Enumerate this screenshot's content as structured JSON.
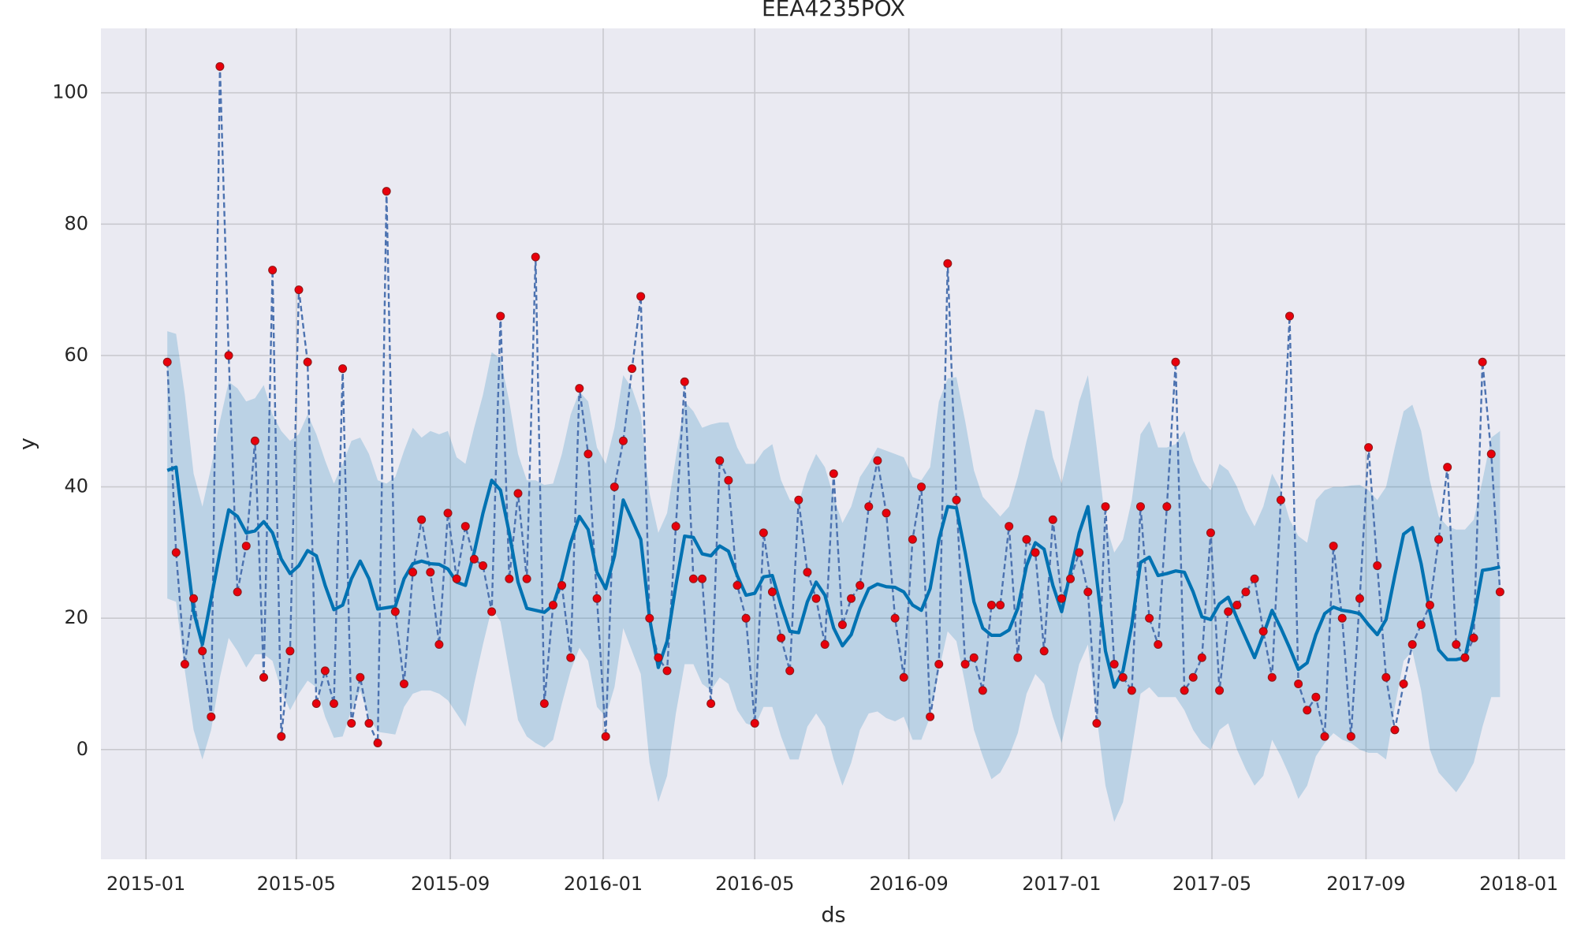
{
  "chart_data": {
    "type": "line",
    "title": "EEA4235POX",
    "x_label": "ds",
    "y_label": "y",
    "background": "#eaeaf2",
    "grid": true,
    "xlim": [
      "2014-11-26",
      "2018-02-07"
    ],
    "ylim": [
      -16.7,
      109.8
    ],
    "yticks": [
      0,
      20,
      40,
      60,
      80,
      100
    ],
    "xticks": [
      {
        "value": "2015-01-01",
        "label": "2015-01"
      },
      {
        "value": "2015-05-01",
        "label": "2015-05"
      },
      {
        "value": "2015-09-01",
        "label": "2015-09"
      },
      {
        "value": "2016-01-01",
        "label": "2016-01"
      },
      {
        "value": "2016-05-01",
        "label": "2016-05"
      },
      {
        "value": "2016-09-01",
        "label": "2016-09"
      },
      {
        "value": "2017-01-01",
        "label": "2017-01"
      },
      {
        "value": "2017-05-01",
        "label": "2017-05"
      },
      {
        "value": "2017-09-01",
        "label": "2017-09"
      },
      {
        "value": "2018-01-01",
        "label": "2018-01"
      }
    ],
    "x": [
      "2015-01-18",
      "2015-01-25",
      "2015-02-01",
      "2015-02-08",
      "2015-02-15",
      "2015-02-22",
      "2015-03-01",
      "2015-03-08",
      "2015-03-15",
      "2015-03-22",
      "2015-03-29",
      "2015-04-05",
      "2015-04-12",
      "2015-04-19",
      "2015-04-26",
      "2015-05-03",
      "2015-05-10",
      "2015-05-17",
      "2015-05-24",
      "2015-05-31",
      "2015-06-07",
      "2015-06-14",
      "2015-06-21",
      "2015-06-28",
      "2015-07-05",
      "2015-07-12",
      "2015-07-19",
      "2015-07-26",
      "2015-08-02",
      "2015-08-09",
      "2015-08-16",
      "2015-08-23",
      "2015-08-30",
      "2015-09-06",
      "2015-09-13",
      "2015-09-20",
      "2015-09-27",
      "2015-10-04",
      "2015-10-11",
      "2015-10-18",
      "2015-10-25",
      "2015-11-01",
      "2015-11-08",
      "2015-11-15",
      "2015-11-22",
      "2015-11-29",
      "2015-12-06",
      "2015-12-13",
      "2015-12-20",
      "2015-12-27",
      "2016-01-03",
      "2016-01-10",
      "2016-01-17",
      "2016-01-24",
      "2016-01-31",
      "2016-02-07",
      "2016-02-14",
      "2016-02-21",
      "2016-02-28",
      "2016-03-06",
      "2016-03-13",
      "2016-03-20",
      "2016-03-27",
      "2016-04-03",
      "2016-04-10",
      "2016-04-17",
      "2016-04-24",
      "2016-05-01",
      "2016-05-08",
      "2016-05-15",
      "2016-05-22",
      "2016-05-29",
      "2016-06-05",
      "2016-06-12",
      "2016-06-19",
      "2016-06-26",
      "2016-07-03",
      "2016-07-10",
      "2016-07-17",
      "2016-07-24",
      "2016-07-31",
      "2016-08-07",
      "2016-08-14",
      "2016-08-21",
      "2016-08-28",
      "2016-09-04",
      "2016-09-11",
      "2016-09-18",
      "2016-09-25",
      "2016-10-02",
      "2016-10-09",
      "2016-10-16",
      "2016-10-23",
      "2016-10-30",
      "2016-11-06",
      "2016-11-13",
      "2016-11-20",
      "2016-11-27",
      "2016-12-04",
      "2016-12-11",
      "2016-12-18",
      "2016-12-25",
      "2017-01-01",
      "2017-01-08",
      "2017-01-15",
      "2017-01-22",
      "2017-01-29",
      "2017-02-05",
      "2017-02-12",
      "2017-02-19",
      "2017-02-26",
      "2017-03-05",
      "2017-03-12",
      "2017-03-19",
      "2017-03-26",
      "2017-04-02",
      "2017-04-09",
      "2017-04-16",
      "2017-04-23",
      "2017-04-30",
      "2017-05-07",
      "2017-05-14",
      "2017-05-21",
      "2017-05-28",
      "2017-06-04",
      "2017-06-11",
      "2017-06-18",
      "2017-06-25",
      "2017-07-02",
      "2017-07-09",
      "2017-07-16",
      "2017-07-23",
      "2017-07-30",
      "2017-08-06",
      "2017-08-13",
      "2017-08-20",
      "2017-08-27",
      "2017-09-03",
      "2017-09-10",
      "2017-09-17",
      "2017-09-24",
      "2017-10-01",
      "2017-10-08",
      "2017-10-15",
      "2017-10-22",
      "2017-10-29",
      "2017-11-05",
      "2017-11-12",
      "2017-11-19",
      "2017-11-26",
      "2017-12-03",
      "2017-12-10",
      "2017-12-17"
    ],
    "series": [
      {
        "color": "#4c72b0",
        "marker_color": "#e8000b",
        "line_style": "dashed",
        "values": [
          59,
          30,
          13,
          23,
          15,
          5,
          104,
          60,
          24,
          31,
          47,
          11,
          73,
          2,
          15,
          70,
          59,
          7,
          12,
          7,
          58,
          4,
          11,
          4,
          1,
          85,
          21,
          10,
          27,
          35,
          27,
          16,
          36,
          26,
          34,
          29,
          28,
          21,
          66,
          26,
          39,
          26,
          75,
          7,
          22,
          25,
          14,
          55,
          45,
          23,
          2,
          40,
          47,
          58,
          69,
          20,
          14,
          12,
          34,
          56,
          26,
          26,
          7,
          44,
          41,
          25,
          20,
          4,
          33,
          24,
          17,
          12,
          38,
          27,
          23,
          16,
          42,
          19,
          23,
          25,
          37,
          44,
          36,
          20,
          11,
          32,
          40,
          5,
          13,
          74,
          38,
          13,
          14,
          9,
          22,
          22,
          34,
          14,
          32,
          30,
          15,
          35,
          23,
          26,
          30,
          24,
          4,
          37,
          13,
          11,
          9,
          37,
          20,
          16,
          37,
          59,
          9,
          11,
          14,
          33,
          9,
          21,
          22,
          24,
          26,
          18,
          11,
          38,
          66,
          10,
          6,
          8,
          2,
          31,
          20,
          2,
          23,
          46,
          28,
          11,
          3,
          10,
          16,
          19,
          22,
          32,
          43,
          16,
          14,
          17,
          59,
          45,
          24
        ]
      },
      {
        "color": "#0072b2",
        "band_color": "#0072b2",
        "values": [
          42.5,
          43,
          32,
          21,
          16,
          23,
          30,
          36.5,
          35.5,
          33,
          33.3,
          34.7,
          33,
          29,
          26.8,
          28,
          30.3,
          29.5,
          25,
          21.3,
          22,
          26,
          28.7,
          26,
          21.4,
          21.6,
          21.8,
          26,
          28.3,
          28.7,
          28.3,
          28.2,
          27.5,
          25.5,
          25,
          30,
          36,
          41,
          39.5,
          33,
          25.5,
          21.5,
          21.2,
          20.9,
          22,
          26,
          31.5,
          35.5,
          33.5,
          27,
          24.5,
          29.5,
          38,
          35,
          32,
          20,
          12.5,
          16.5,
          25,
          32.5,
          32.3,
          29.8,
          29.5,
          31,
          30.2,
          26.5,
          23.5,
          23.8,
          26.3,
          26.5,
          22,
          18,
          17.8,
          22.5,
          25.5,
          23.5,
          18.5,
          15.8,
          17.5,
          21.5,
          24.5,
          25.2,
          24.8,
          24.7,
          24,
          22,
          21.2,
          24.5,
          32,
          37,
          36.8,
          30,
          22.5,
          18.5,
          17.4,
          17.4,
          18.2,
          21.5,
          28,
          31.5,
          30.5,
          25,
          21,
          27,
          33,
          37,
          26,
          15,
          9.5,
          12,
          19,
          28.5,
          29.3,
          26.5,
          26.8,
          27.2,
          27,
          24,
          20.2,
          19.8,
          22.2,
          23.2,
          20,
          17,
          14,
          17.5,
          21.2,
          18.5,
          15.5,
          12.2,
          13.2,
          17.5,
          20.7,
          21.7,
          21.2,
          21,
          20.7,
          19,
          17.5,
          19.8,
          26.5,
          32.8,
          33.8,
          28.3,
          21,
          15.2,
          13.7,
          13.7,
          14,
          20,
          27.3,
          27.5,
          27.8
        ],
        "upper": [
          63.7,
          63.3,
          54,
          42,
          37,
          43,
          50,
          56,
          55,
          53,
          53.5,
          55.5,
          51,
          48.5,
          47,
          48,
          51,
          48,
          44,
          40.5,
          43.5,
          47,
          47.5,
          45,
          41,
          40.5,
          41.5,
          45.5,
          49,
          47.5,
          48.5,
          48,
          48.5,
          44.5,
          43.5,
          49,
          54,
          60.5,
          59.5,
          53,
          45,
          41,
          41,
          40.3,
          40.5,
          45,
          51,
          54.5,
          53,
          46,
          43.5,
          49,
          57,
          55,
          51,
          39,
          33,
          36,
          44.5,
          53,
          51.5,
          49,
          49.5,
          49.8,
          49.8,
          46,
          43.5,
          43.5,
          45.5,
          46.5,
          41,
          38,
          37.5,
          42,
          45,
          43,
          38.5,
          34.5,
          37,
          41.5,
          43.5,
          46,
          45.5,
          45,
          44.5,
          41.5,
          41,
          43,
          53,
          56.5,
          56.7,
          50,
          42.5,
          38.5,
          37,
          35.5,
          37,
          41.5,
          47,
          51.8,
          51.5,
          44.5,
          40.5,
          46.5,
          53,
          57,
          46,
          34.5,
          30,
          32,
          38,
          48,
          50,
          46,
          46,
          46.5,
          48.5,
          44,
          41,
          39.5,
          43.5,
          42.5,
          40,
          36.5,
          34,
          37,
          42,
          39.5,
          35,
          32.5,
          31.5,
          38,
          39.5,
          40,
          40,
          40.2,
          40.3,
          39.5,
          38,
          40,
          46,
          51.5,
          52.5,
          48.5,
          41,
          35.5,
          34,
          33.5,
          33.5,
          35,
          41,
          47.5,
          48.5
        ],
        "lower": [
          23,
          22.5,
          12,
          3,
          -1.5,
          3,
          11,
          17,
          15,
          12.5,
          14.5,
          14.5,
          13.5,
          9,
          6,
          8.5,
          10.5,
          9.5,
          5,
          1.8,
          2,
          6,
          9,
          5,
          2.7,
          2.5,
          2.3,
          6.5,
          8.5,
          9,
          9,
          8.5,
          7.5,
          5.5,
          3.5,
          10,
          16,
          21.5,
          19.5,
          12,
          4.5,
          2,
          1,
          0.3,
          1.5,
          7,
          12,
          15.5,
          13.5,
          6.5,
          5,
          9.5,
          18.5,
          15,
          11.5,
          -2,
          -8,
          -4,
          5.5,
          13,
          13,
          10,
          9,
          11,
          10,
          6,
          4,
          3.5,
          6.5,
          6.5,
          2,
          -1.5,
          -1.5,
          3.5,
          5.5,
          3.5,
          -1.5,
          -5.5,
          -2,
          3,
          5.5,
          5.8,
          4.8,
          4.3,
          5,
          1.5,
          1.5,
          5,
          12,
          18,
          16.5,
          10,
          3,
          -1,
          -4.5,
          -3.5,
          -1,
          2.5,
          8.5,
          11.5,
          10,
          5,
          1,
          7,
          13,
          16,
          5,
          -5.5,
          -11,
          -8,
          0,
          8.5,
          9.5,
          8,
          8,
          8,
          6,
          3,
          1,
          0,
          3,
          4,
          0,
          -3,
          -5.5,
          -4,
          1.5,
          -1,
          -4,
          -7.5,
          -5.5,
          -1,
          1,
          2.5,
          1.5,
          1,
          0,
          -0.5,
          -0.5,
          -1.5,
          6.5,
          13.5,
          15,
          9,
          0,
          -3.5,
          -5,
          -6.5,
          -4.5,
          -2,
          3.5,
          8,
          8
        ]
      }
    ]
  }
}
